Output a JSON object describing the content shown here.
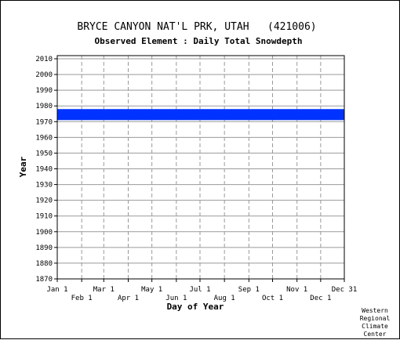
{
  "chart_data": {
    "type": "heatmap",
    "title": "BRYCE CANYON NAT'L PRK, UTAH   (421006)",
    "subtitle": "Observed Element : Daily Total Snowdepth",
    "xlabel": "Day of Year",
    "ylabel": "Year",
    "ylim": [
      1870,
      2012
    ],
    "xlim": [
      1,
      365
    ],
    "y_ticks": [
      1870,
      1880,
      1890,
      1900,
      1910,
      1920,
      1930,
      1940,
      1950,
      1960,
      1970,
      1980,
      1990,
      2000,
      2010
    ],
    "x_ticks_upper": [
      {
        "label": "Jan 1",
        "day": 1
      },
      {
        "label": "Mar 1",
        "day": 60
      },
      {
        "label": "May 1",
        "day": 121
      },
      {
        "label": "Jul 1",
        "day": 182
      },
      {
        "label": "Sep 1",
        "day": 244
      },
      {
        "label": "Nov 1",
        "day": 305
      },
      {
        "label": "Dec 31",
        "day": 365
      }
    ],
    "x_ticks_lower": [
      {
        "label": "Feb 1",
        "day": 32
      },
      {
        "label": "Apr 1",
        "day": 91
      },
      {
        "label": "Jun 1",
        "day": 152
      },
      {
        "label": "Aug 1",
        "day": 213
      },
      {
        "label": "Oct 1",
        "day": 274
      },
      {
        "label": "Dec 1",
        "day": 335
      }
    ],
    "grid": true,
    "data_color": "#0033ff",
    "coverage": [
      {
        "year_start": 1971,
        "year_end": 1977,
        "day_start": 1,
        "day_end": 365
      }
    ],
    "credit": [
      "Western",
      "Regional",
      "Climate",
      "Center"
    ]
  }
}
